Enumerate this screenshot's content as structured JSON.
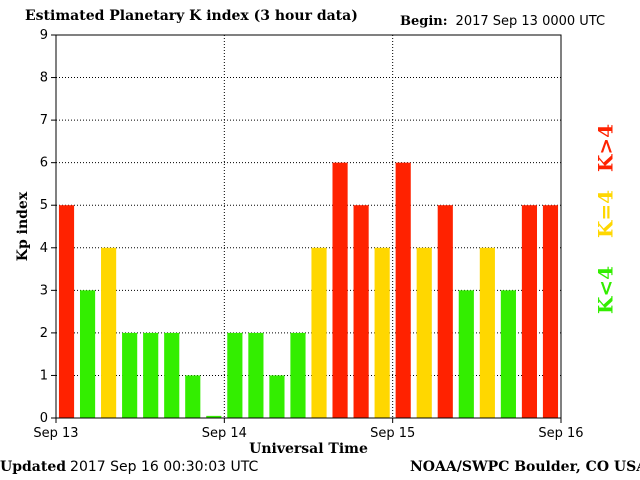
{
  "header": {
    "title": "Estimated Planetary K index (3 hour data)",
    "begin_label": "Begin:",
    "begin_value": "2017 Sep 13 0000 UTC"
  },
  "footer": {
    "updated_label": "Updated",
    "updated_value": "2017 Sep 16 00:30:03 UTC",
    "credit": "NOAA/SWPC Boulder, CO USA"
  },
  "chart_data": {
    "type": "bar",
    "title": "Estimated Planetary K index (3 hour data)",
    "xlabel": "Universal Time",
    "ylabel": "Kp index",
    "ylim": [
      0,
      9
    ],
    "yticks": [
      0,
      1,
      2,
      3,
      4,
      5,
      6,
      7,
      8,
      9
    ],
    "xticks": [
      "Sep 13",
      "Sep 14",
      "Sep 15",
      "Sep 16"
    ],
    "grid": true,
    "values": [
      5,
      3,
      4,
      2,
      2,
      2,
      1,
      0.05,
      2,
      2,
      1,
      2,
      4,
      6,
      5,
      4,
      6,
      4,
      5,
      3,
      4,
      3,
      5,
      5
    ],
    "colors": {
      "below_4": "#33ee00",
      "equal_4": "#ffd700",
      "above_4": "#ff2200"
    },
    "legend": {
      "placement": "right",
      "items": [
        {
          "label": "K>4",
          "category": "above_4"
        },
        {
          "label": "K=4",
          "category": "equal_4"
        },
        {
          "label": "K<4",
          "category": "below_4"
        }
      ]
    }
  }
}
